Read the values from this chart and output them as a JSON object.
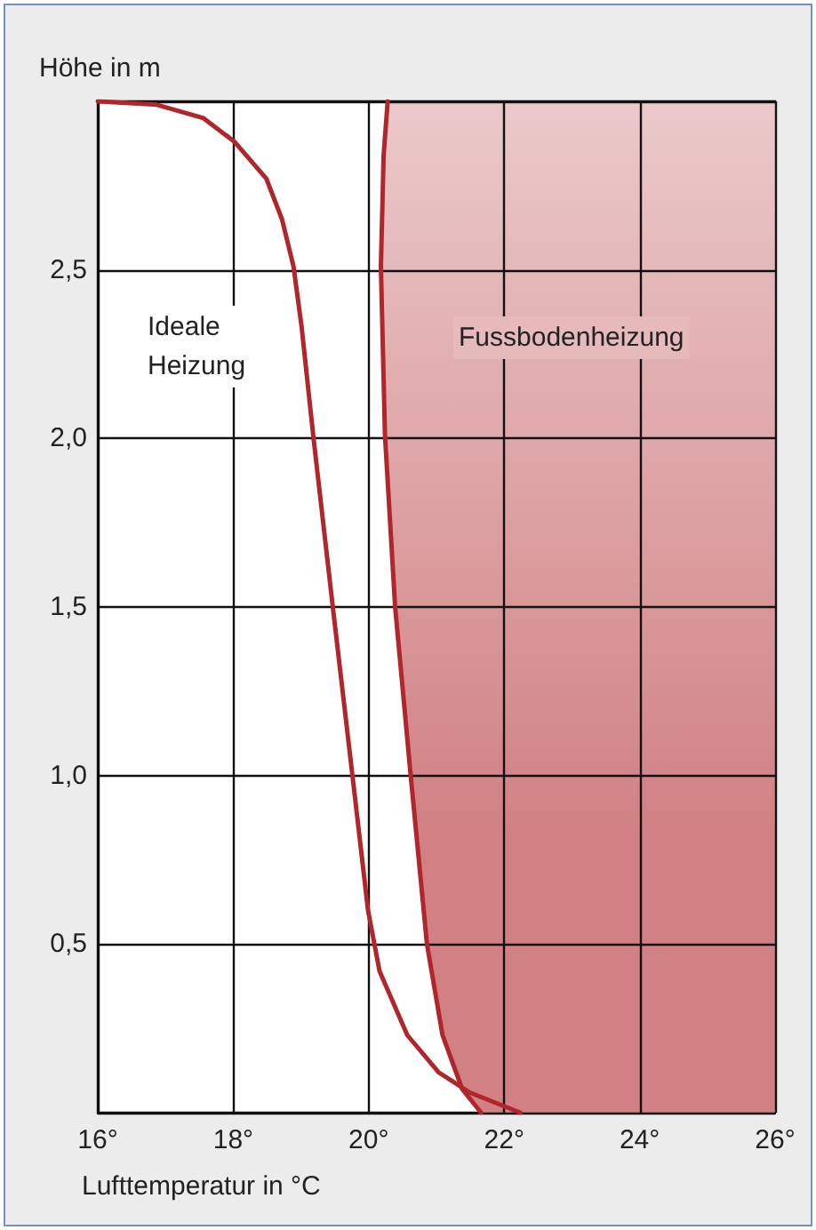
{
  "chart_data": {
    "type": "line",
    "xlabel": "Lufttemperatur in °C",
    "ylabel": "Höhe in m",
    "xlim": [
      16,
      26
    ],
    "ylim": [
      0,
      3
    ],
    "xticks": [
      {
        "value": 16,
        "label": "16°"
      },
      {
        "value": 18,
        "label": "18°"
      },
      {
        "value": 20,
        "label": "20°"
      },
      {
        "value": 22,
        "label": "22°"
      },
      {
        "value": 24,
        "label": "24°"
      },
      {
        "value": 26,
        "label": "26°"
      }
    ],
    "yticks": [
      {
        "value": 0,
        "label": null
      },
      {
        "value": 0.5,
        "label": "0,5"
      },
      {
        "value": 1,
        "label": "1,0"
      },
      {
        "value": 1.5,
        "label": "1,5"
      },
      {
        "value": 2,
        "label": "2,0"
      },
      {
        "value": 2.5,
        "label": "2,5"
      },
      {
        "value": 3,
        "label": null
      }
    ],
    "grid": true,
    "marker": "none",
    "line_style": "solid",
    "series": [
      {
        "name": "Ideale Heizung",
        "color": "#b0262b",
        "x": [
          16.0,
          16.87,
          17.56,
          18.02,
          18.49,
          18.72,
          18.89,
          19.01,
          19.18,
          19.47,
          19.76,
          19.99,
          20.16,
          20.57,
          21.03,
          21.49,
          22.24
        ],
        "values": [
          3.0,
          2.99,
          2.95,
          2.88,
          2.77,
          2.65,
          2.51,
          2.33,
          2.01,
          1.5,
          1.0,
          0.6,
          0.42,
          0.23,
          0.12,
          0.06,
          0.0
        ]
      },
      {
        "name": "Fussbodenheizung",
        "type": "area",
        "color": "#b0262b",
        "x": [
          20.28,
          20.22,
          20.18,
          20.24,
          20.39,
          20.62,
          20.86,
          21.09,
          21.38,
          21.66,
          26,
          26
        ],
        "values": [
          3.0,
          2.84,
          2.51,
          2.01,
          1.5,
          1.0,
          0.5,
          0.23,
          0.07,
          0.0,
          0.0,
          3.0
        ]
      }
    ]
  }
}
